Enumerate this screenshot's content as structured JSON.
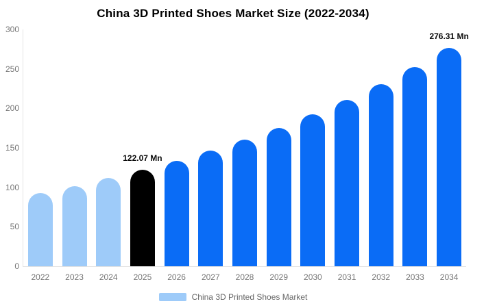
{
  "chart_data": {
    "type": "bar",
    "title": "China 3D Printed Shoes Market Size (2022-2034)",
    "categories": [
      "2022",
      "2023",
      "2024",
      "2025",
      "2026",
      "2027",
      "2028",
      "2029",
      "2030",
      "2031",
      "2032",
      "2033",
      "2034"
    ],
    "values": [
      92.98,
      101.81,
      111.48,
      122.07,
      133.67,
      146.37,
      160.27,
      175.5,
      192.17,
      210.43,
      230.42,
      252.31,
      276.31
    ],
    "bar_colors": [
      "#9ecbf9",
      "#9ecbf9",
      "#9ecbf9",
      "#000000",
      "#0a6cf6",
      "#0a6cf6",
      "#0a6cf6",
      "#0a6cf6",
      "#0a6cf6",
      "#0a6cf6",
      "#0a6cf6",
      "#0a6cf6",
      "#0a6cf6"
    ],
    "unit": "Mn",
    "ylim": [
      0,
      300
    ],
    "yticks": [
      0,
      50,
      100,
      150,
      200,
      250,
      300
    ],
    "xlabel": "",
    "ylabel": "",
    "grid": false,
    "legend_position": "bottom",
    "annotations": [
      {
        "category": "2025",
        "text": "122.07 Mn"
      },
      {
        "category": "2034",
        "text": "276.31 Mn"
      }
    ],
    "legend": [
      {
        "label": "China 3D Printed Shoes Market",
        "swatch_color": "#9ecbf9"
      }
    ]
  },
  "colors": {
    "axis_line": "#e2e2e2",
    "tick_text": "#757575",
    "legend_text": "#666666",
    "title_text": "#000000",
    "annotation_text": "#0a0a0a",
    "background": "#ffffff"
  }
}
